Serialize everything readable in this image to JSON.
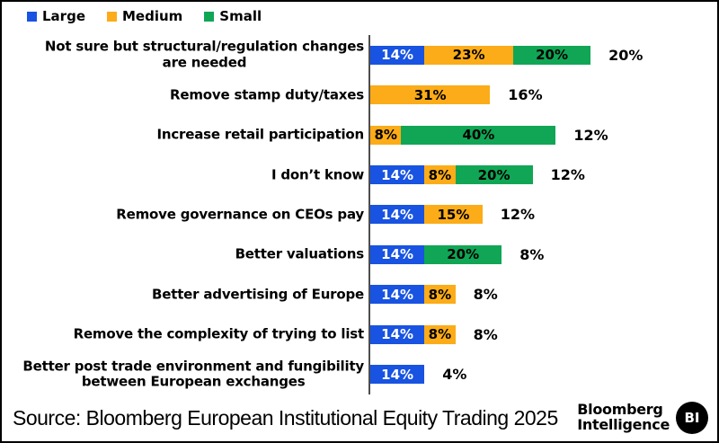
{
  "legend": [
    {
      "label": "Large",
      "color": "#1853E1"
    },
    {
      "label": "Medium",
      "color": "#FBAC18"
    },
    {
      "label": "Small",
      "color": "#10A655"
    }
  ],
  "chart_data": {
    "type": "bar",
    "orientation": "horizontal",
    "stacked": true,
    "value_unit": "%",
    "legend_position": "top-left",
    "xlim": [
      0,
      60
    ],
    "grid": false,
    "series": [
      "Large",
      "Medium",
      "Small"
    ],
    "series_colors": {
      "Large": "#1853E1",
      "Medium": "#FBAC18",
      "Small": "#10A655"
    },
    "series_label_colors": {
      "Large": "#FFFFFF",
      "Medium": "#000000",
      "Small": "#000000"
    },
    "categories": [
      "Not sure but structural/regulation changes are needed",
      "Remove stamp duty/taxes",
      "Increase retail participation",
      "I don’t know",
      "Remove governance on CEOs pay",
      "Better valuations",
      "Better advertising of Europe",
      "Remove the complexity of trying to list",
      "Better post trade environment and fungibility between European exchanges"
    ],
    "rows": [
      {
        "category": "Not sure but structural/regulation changes\nare needed",
        "segments": [
          {
            "series": "Large",
            "value": 14
          },
          {
            "series": "Medium",
            "value": 23
          },
          {
            "series": "Small",
            "value": 20
          }
        ],
        "outside_label": "20%"
      },
      {
        "category": "Remove stamp duty/taxes",
        "segments": [
          {
            "series": "Medium",
            "value": 31
          }
        ],
        "outside_label": "16%"
      },
      {
        "category": "Increase retail participation",
        "segments": [
          {
            "series": "Medium",
            "value": 8
          },
          {
            "series": "Small",
            "value": 40
          }
        ],
        "outside_label": "12%"
      },
      {
        "category": "I don’t know",
        "segments": [
          {
            "series": "Large",
            "value": 14
          },
          {
            "series": "Medium",
            "value": 8
          },
          {
            "series": "Small",
            "value": 20
          }
        ],
        "outside_label": "12%"
      },
      {
        "category": "Remove governance on CEOs pay",
        "segments": [
          {
            "series": "Large",
            "value": 14
          },
          {
            "series": "Medium",
            "value": 15
          }
        ],
        "outside_label": "12%"
      },
      {
        "category": "Better valuations",
        "segments": [
          {
            "series": "Large",
            "value": 14
          },
          {
            "series": "Small",
            "value": 20
          }
        ],
        "outside_label": "8%"
      },
      {
        "category": "Better advertising of Europe",
        "segments": [
          {
            "series": "Large",
            "value": 14
          },
          {
            "series": "Medium",
            "value": 8
          }
        ],
        "outside_label": "8%"
      },
      {
        "category": "Remove the complexity of trying to list",
        "segments": [
          {
            "series": "Large",
            "value": 14
          },
          {
            "series": "Medium",
            "value": 8
          }
        ],
        "outside_label": "8%"
      },
      {
        "category": "Better post trade environment and fungibility\nbetween European exchanges",
        "segments": [
          {
            "series": "Large",
            "value": 14
          }
        ],
        "outside_label": "4%"
      }
    ]
  },
  "footer": {
    "source": "Source: Bloomberg European Institutional Equity Trading 2025",
    "brand_line1": "Bloomberg",
    "brand_line2": "Intelligence",
    "badge": "BI"
  }
}
